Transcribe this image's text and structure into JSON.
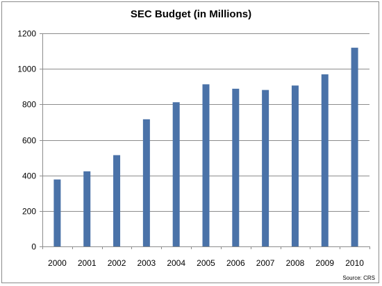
{
  "chart_data": {
    "type": "bar",
    "title": "SEC Budget (in Millions)",
    "source": "Source: CRS",
    "categories": [
      "2000",
      "2001",
      "2002",
      "2003",
      "2004",
      "2005",
      "2006",
      "2007",
      "2008",
      "2009",
      "2010"
    ],
    "values": [
      377,
      423,
      514,
      716,
      812,
      913,
      888,
      881,
      906,
      969,
      1119
    ],
    "ylim": [
      0,
      1200
    ],
    "yticks": [
      0,
      200,
      400,
      600,
      800,
      1000,
      1200
    ],
    "grid": true,
    "legend": "none",
    "colors": {
      "bar": "#4a72a8",
      "grid": "#8c8c8c"
    }
  }
}
